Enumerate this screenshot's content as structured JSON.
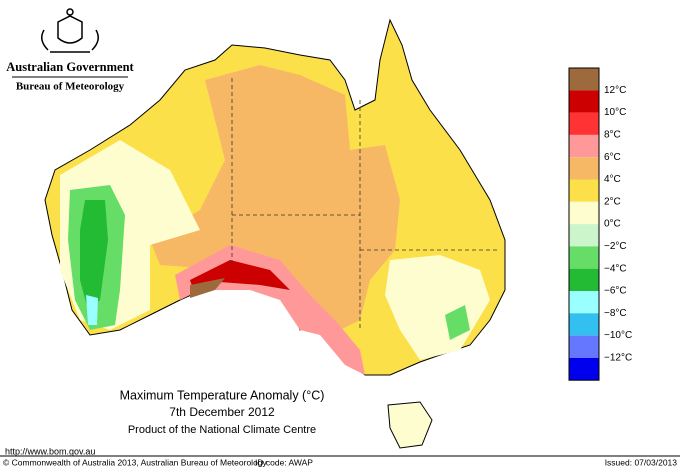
{
  "header": {
    "government": "Australian Government",
    "bureau": "Bureau of Meteorology"
  },
  "legend": {
    "colors": [
      "#9c6a3c",
      "#cc0000",
      "#ff3333",
      "#ff9999",
      "#f7b866",
      "#fbe04a",
      "#fdfdd0",
      "#ccf5cc",
      "#66dd66",
      "#22bb33",
      "#99ffff",
      "#33c0f0",
      "#6677ff",
      "#0000ee"
    ],
    "labels": [
      "12°C",
      "10°C",
      "8°C",
      "6°C",
      "4°C",
      "2°C",
      "0°C",
      "−2°C",
      "−4°C",
      "−6°C",
      "−8°C",
      "−10°C",
      "−12°C"
    ]
  },
  "title": {
    "line1": "Maximum Temperature Anomaly (°C)",
    "line2": "7th December 2012",
    "line3": "Product of the National Climate Centre"
  },
  "footer": {
    "url": "http://www.bom.gov.au",
    "copyright": "© Commonwealth of Australia 2013, Australian Bureau of Meteorology",
    "id_code": "ID code: AWAP",
    "issued": "Issued: 07/03/2013"
  }
}
